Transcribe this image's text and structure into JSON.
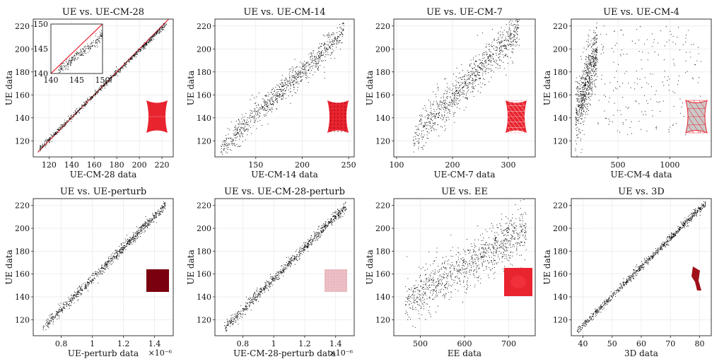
{
  "figure": {
    "accent": "#e8242f",
    "point_color": "#000000"
  },
  "chart_data": [
    {
      "type": "scatter",
      "title": "UE vs. UE-CM-28",
      "xlabel": "UE-CM-28 data",
      "ylabel": "UE data",
      "xlim": [
        106,
        230
      ],
      "ylim": [
        106,
        226
      ],
      "xticks": [
        120,
        140,
        160,
        180,
        200,
        220
      ],
      "yticks": [
        120,
        140,
        160,
        180,
        200,
        220
      ],
      "x_exponent": "",
      "grid": true,
      "reference_line": true,
      "cloud": {
        "x_range": [
          110,
          224
        ],
        "y_at_x": [
          [
            110,
            111.5
          ],
          [
            224,
            222
          ]
        ],
        "spread": 1.2,
        "n": 700
      },
      "inset": {
        "xlim": [
          140,
          150
        ],
        "ylim": [
          140,
          150
        ],
        "xticks": [
          140,
          145,
          150
        ],
        "yticks": [
          140,
          145,
          150
        ],
        "reference_line": true,
        "cloud": {
          "x_range": [
            141.5,
            150
          ],
          "y_at_x": [
            [
              141.5,
              140.6
            ],
            [
              150,
              147.6
            ]
          ],
          "spread": 0.55,
          "n": 260
        }
      },
      "glyph": {
        "shape": "hourglass",
        "color": "#e8242f",
        "mesh": "fine"
      }
    },
    {
      "type": "scatter",
      "title": "UE vs. UE-CM-14",
      "xlabel": "UE-CM-14 data",
      "ylabel": "UE data",
      "xlim": [
        106,
        256
      ],
      "ylim": [
        106,
        226
      ],
      "xticks": [
        150,
        200,
        250
      ],
      "yticks": [
        120,
        140,
        160,
        180,
        200,
        220
      ],
      "x_exponent": "",
      "grid": true,
      "cloud": {
        "x_range": [
          112,
          245
        ],
        "y_at_x": [
          [
            112,
            113
          ],
          [
            245,
            215
          ]
        ],
        "spread": 5.5,
        "n": 900
      },
      "glyph": {
        "shape": "hourglass",
        "color": "#e8242f",
        "mesh": "dots"
      }
    },
    {
      "type": "scatter",
      "title": "UE vs. UE-CM-7",
      "xlabel": "UE-CM-7 data",
      "ylabel": "UE data",
      "xlim": [
        95,
        348
      ],
      "ylim": [
        106,
        226
      ],
      "xticks": [
        100,
        200,
        300
      ],
      "yticks": [
        120,
        140,
        160,
        180,
        200,
        220
      ],
      "x_exponent": "",
      "grid": true,
      "cloud": {
        "x_range": [
          130,
          320
        ],
        "y_at_x": [
          [
            130,
            122
          ],
          [
            320,
            218
          ]
        ],
        "spread": 8,
        "n": 950
      },
      "glyph": {
        "shape": "hourglass",
        "color": "#e8242f",
        "mesh": "tri"
      }
    },
    {
      "type": "scatter",
      "title": "UE vs. UE-CM-4",
      "xlabel": "UE-CM-4 data",
      "ylabel": "UE data",
      "xlim": [
        50,
        1400
      ],
      "ylim": [
        106,
        226
      ],
      "xticks": [
        500,
        1000
      ],
      "yticks": [
        120,
        140,
        160,
        180,
        200,
        220
      ],
      "x_exponent": "",
      "grid": true,
      "cloud": {
        "x_range": [
          90,
          300
        ],
        "y_at_x": [
          [
            90,
            140
          ],
          [
            300,
            200
          ]
        ],
        "spread": 14,
        "n": 900,
        "tail_to": 1300
      },
      "glyph": {
        "shape": "hourglass",
        "color": "#c9c9c9",
        "mesh": "tri-red"
      }
    },
    {
      "type": "scatter",
      "title": "UE vs. UE-perturb",
      "xlabel": "UE-perturb data",
      "ylabel": "UE data",
      "xlim": [
        0.62,
        1.52
      ],
      "ylim": [
        106,
        226
      ],
      "xticks": [
        0.8,
        1.0,
        1.2,
        1.4
      ],
      "yticks": [
        120,
        140,
        160,
        180,
        200,
        220
      ],
      "x_exponent": "×10⁻⁶",
      "grid": true,
      "cloud": {
        "x_range": [
          0.68,
          1.47
        ],
        "y_at_x": [
          [
            0.68,
            112
          ],
          [
            1.47,
            220
          ]
        ],
        "spread": 2.2,
        "n": 850
      },
      "glyph": {
        "shape": "square",
        "color": "#7a0010",
        "mesh": "none"
      }
    },
    {
      "type": "scatter",
      "title": "UE vs. UE-CM-28-perturb",
      "xlabel": "UE-CM-28-perturb data",
      "ylabel": "UE data",
      "xlim": [
        0.62,
        1.52
      ],
      "ylim": [
        106,
        226
      ],
      "xticks": [
        0.8,
        1.0,
        1.2,
        1.4
      ],
      "yticks": [
        120,
        140,
        160,
        180,
        200,
        220
      ],
      "x_exponent": "×10⁻⁶",
      "grid": true,
      "cloud": {
        "x_range": [
          0.68,
          1.47
        ],
        "y_at_x": [
          [
            0.68,
            112
          ],
          [
            1.47,
            220
          ]
        ],
        "spread": 2.2,
        "n": 850
      },
      "glyph": {
        "shape": "square",
        "color": "#e9b7bf",
        "mesh": "grid"
      }
    },
    {
      "type": "scatter",
      "title": "UE vs. EE",
      "xlabel": "EE data",
      "ylabel": "UE data",
      "xlim": [
        440,
        760
      ],
      "ylim": [
        106,
        226
      ],
      "xticks": [
        500,
        600,
        700
      ],
      "yticks": [
        120,
        140,
        160,
        180,
        200,
        220
      ],
      "x_exponent": "",
      "grid": true,
      "cloud": {
        "x_range": [
          465,
          740
        ],
        "y_at_x": [
          [
            465,
            135
          ],
          [
            740,
            200
          ]
        ],
        "spread": 10,
        "n": 1000
      },
      "glyph": {
        "shape": "blob-square",
        "color": "#e8242f",
        "mesh": "none"
      }
    },
    {
      "type": "scatter",
      "title": "UE vs. 3D",
      "xlabel": "3D data",
      "ylabel": "UE data",
      "xlim": [
        36,
        84
      ],
      "ylim": [
        106,
        226
      ],
      "xticks": [
        40,
        50,
        60,
        70,
        80
      ],
      "yticks": [
        120,
        140,
        160,
        180,
        200,
        220
      ],
      "x_exponent": "",
      "grid": true,
      "cloud": {
        "x_range": [
          38,
          82
        ],
        "y_at_x": [
          [
            38,
            110
          ],
          [
            82,
            222
          ]
        ],
        "spread": 1.6,
        "n": 850
      },
      "glyph": {
        "shape": "ribbon",
        "color": "#a01018",
        "mesh": "none"
      }
    }
  ]
}
